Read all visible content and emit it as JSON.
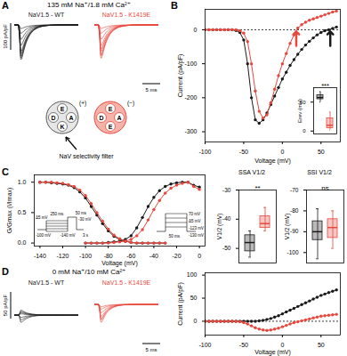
{
  "panel_labels": [
    "A",
    "B",
    "C",
    "D"
  ],
  "panel_a": {
    "condition": "135 mM Na⁺/1.8 mM Ca²⁺",
    "traces": [
      {
        "name": "NaV1.5 - WT",
        "color": "#1a1a1a"
      },
      {
        "name": "NaV1.5 - K1419E",
        "color": "#e8473d"
      }
    ],
    "scale_current": "100 pA/pF",
    "scale_time": "5 ms",
    "filter": {
      "caption": "NaV selectivity filter",
      "wt": {
        "residues": [
          "E",
          "A",
          "K",
          "D"
        ],
        "charge": "(+)"
      },
      "mutant": {
        "residues": [
          "E",
          "A",
          "E",
          "D"
        ],
        "charge": "(−)"
      }
    }
  },
  "panel_d": {
    "condition": "0 mM Na⁺/10 mM Ca²⁺",
    "traces": [
      {
        "name": "NaV1.5 - WT",
        "color": "#1a1a1a"
      },
      {
        "name": "NaV1.5 - K1419E",
        "color": "#e8473d"
      }
    ],
    "scale_current": "50 pA/pF",
    "scale_time": "5 ms"
  },
  "protocols": {
    "left": [
      "250 ms",
      "50 ms",
      "-30 mV",
      "Δ5 mV",
      "-100 mV",
      "-140 mV",
      "3 s"
    ],
    "right": [
      "50 ms",
      "70 mV",
      "Δ5 mV",
      "-123 mV",
      "-130 mV"
    ]
  },
  "chart_data": [
    {
      "type": "line",
      "x_label": "Voltage (mV)",
      "y_label": "Current (pA/pF)",
      "x": [
        -100,
        -95,
        -90,
        -85,
        -80,
        -75,
        -70,
        -65,
        -60,
        -55,
        -50,
        -45,
        -40,
        -35,
        -30,
        -25,
        -20,
        -15,
        -10,
        -5,
        0,
        5,
        10,
        15,
        20,
        25,
        30,
        35,
        40,
        45,
        50,
        55,
        60,
        65,
        70
      ],
      "series": [
        {
          "color": "#1a1a1a",
          "marker": "circle",
          "values": [
            0,
            0,
            0,
            0,
            0,
            0,
            0,
            0,
            -2,
            -8,
            -30,
            -100,
            -200,
            -265,
            -275,
            -265,
            -245,
            -220,
            -195,
            -170,
            -145,
            -125,
            -105,
            -88,
            -72,
            -58,
            -45,
            -34,
            -24,
            -15,
            -8,
            -3,
            0,
            4,
            8
          ]
        },
        {
          "color": "#e8473d",
          "marker": "circle",
          "values": [
            0,
            0,
            0,
            0,
            0,
            0,
            0,
            0,
            0,
            -3,
            -10,
            -35,
            -100,
            -180,
            -240,
            -260,
            -250,
            -215,
            -175,
            -135,
            -100,
            -70,
            -40,
            -15,
            5,
            15,
            22,
            28,
            32,
            36,
            40,
            44,
            48,
            52,
            55
          ]
        }
      ],
      "xlim": [
        -100,
        75
      ],
      "xticks": [
        -100,
        -50,
        0,
        50
      ],
      "ylim": [
        -330,
        60
      ],
      "yticks": [
        -300,
        -200,
        -100,
        0
      ],
      "reference_line": 0,
      "reversal_arrows": [
        {
          "x": 62,
          "color": "#1a1a1a"
        },
        {
          "x": 18,
          "color": "#e8473d"
        }
      ]
    },
    {
      "type": "box",
      "y_label": "Erev (mV)",
      "ylim": [
        -5,
        75
      ],
      "yticks": [
        0,
        50
      ],
      "tick_labels": "y",
      "significance": "***",
      "series": [
        {
          "color": "#1a1a1a",
          "min": 50,
          "q1": 55,
          "median": 58,
          "q3": 62,
          "max": 68
        },
        {
          "color": "#e8473d",
          "min": 2,
          "q1": 5,
          "median": 10,
          "q3": 22,
          "max": 33
        }
      ]
    },
    {
      "type": "line",
      "x_label": "Voltage (mV)",
      "y_label": "G/Gmax (I/Imax)",
      "xlim": [
        -145,
        5
      ],
      "xticks": [
        -140,
        -120,
        -100,
        -80,
        -60,
        -40,
        -20,
        0
      ],
      "ylim": [
        -0.05,
        1.12
      ],
      "yticks": [
        {
          "value": 0,
          "label": "0.0"
        },
        {
          "value": 0.5,
          "label": "0.5"
        },
        {
          "value": 1,
          "label": "1.0"
        }
      ],
      "series": [
        {
          "color": "#1a1a1a",
          "marker": "circle",
          "x": [
            -100,
            -95,
            -90,
            -85,
            -80,
            -75,
            -70,
            -65,
            -60,
            -55,
            -50,
            -45,
            -40,
            -35,
            -30,
            -25,
            -20,
            -15,
            -10,
            -5,
            0
          ],
          "values": [
            0,
            0,
            0,
            0,
            0.01,
            0.02,
            0.03,
            0.06,
            0.12,
            0.25,
            0.42,
            0.6,
            0.75,
            0.86,
            0.93,
            0.97,
            0.99,
            1.0,
            1.0,
            0.95,
            0.92
          ]
        },
        {
          "color": "#e8473d",
          "marker": "circle",
          "x": [
            -100,
            -95,
            -90,
            -85,
            -80,
            -75,
            -70,
            -65,
            -60,
            -55,
            -50,
            -45,
            -40,
            -35,
            -30,
            -25,
            -20,
            -15,
            -10,
            -5,
            0
          ],
          "values": [
            0,
            0,
            0,
            0,
            0,
            0.01,
            0.02,
            0.03,
            0.06,
            0.12,
            0.22,
            0.38,
            0.55,
            0.7,
            0.82,
            0.9,
            0.95,
            0.98,
            1.0,
            0.93,
            0.88
          ]
        },
        {
          "color": "#1a1a1a",
          "marker": "circle",
          "x": [
            -140,
            -135,
            -130,
            -125,
            -120,
            -115,
            -110,
            -105,
            -100,
            -95,
            -90,
            -85,
            -80,
            -75,
            -70,
            -65,
            -60,
            -55,
            -50,
            -45,
            -40,
            -35,
            -30
          ],
          "values": [
            1.0,
            1.0,
            0.99,
            0.98,
            0.97,
            0.95,
            0.91,
            0.84,
            0.74,
            0.6,
            0.46,
            0.32,
            0.2,
            0.11,
            0.06,
            0.03,
            0.01,
            0,
            0,
            0,
            0,
            0,
            0
          ]
        },
        {
          "color": "#e8473d",
          "marker": "circle",
          "x": [
            -140,
            -135,
            -130,
            -125,
            -120,
            -115,
            -110,
            -105,
            -100,
            -95,
            -90,
            -85,
            -80,
            -75,
            -70,
            -65,
            -60,
            -55,
            -50,
            -45,
            -40,
            -35,
            -30
          ],
          "values": [
            1.0,
            1.0,
            1.0,
            0.99,
            0.98,
            0.96,
            0.93,
            0.87,
            0.78,
            0.65,
            0.5,
            0.36,
            0.23,
            0.13,
            0.07,
            0.03,
            0.01,
            0,
            0,
            0,
            0,
            0,
            0
          ]
        }
      ]
    },
    {
      "type": "box",
      "title": "SSA V1/2",
      "y_label": "V1/2 (mV)",
      "ylim": [
        -55,
        -30
      ],
      "yticks": [
        -50,
        -40,
        -30
      ],
      "tick_labels": "y",
      "significance": "**",
      "series": [
        {
          "color": "#1a1a1a",
          "min": -53,
          "q1": -51,
          "median": -48,
          "q3": -45.5,
          "max": -44
        },
        {
          "color": "#e8473d",
          "min": -44,
          "q1": -43,
          "median": -41.5,
          "q3": -39,
          "max": -36
        }
      ]
    },
    {
      "type": "box",
      "title": "SSI V1/2",
      "y_label": "V1/2 (mV)",
      "ylim": [
        -105,
        -70
      ],
      "yticks": [
        -100,
        -90,
        -80,
        -70
      ],
      "tick_labels": "y",
      "significance": "ns",
      "series": [
        {
          "color": "#1a1a1a",
          "min": -103,
          "q1": -94,
          "median": -90,
          "q3": -85,
          "max": -79
        },
        {
          "color": "#e8473d",
          "min": -98,
          "q1": -93,
          "median": -88,
          "q3": -84,
          "max": -80
        }
      ]
    },
    {
      "type": "line",
      "x_label": "Voltage (mV)",
      "y_label": "Current (pA/pF)",
      "x": [
        -100,
        -95,
        -90,
        -85,
        -80,
        -75,
        -70,
        -65,
        -60,
        -55,
        -50,
        -45,
        -40,
        -35,
        -30,
        -25,
        -20,
        -15,
        -10,
        -5,
        0,
        5,
        10,
        15,
        20,
        25,
        30,
        35,
        40,
        45,
        50,
        55,
        60,
        65,
        70
      ],
      "series": [
        {
          "color": "#1a1a1a",
          "marker": "circle",
          "values": [
            0,
            0,
            0,
            0,
            0,
            0,
            0,
            0,
            0,
            0,
            0,
            0,
            0,
            0,
            1,
            2,
            4,
            6,
            9,
            12,
            16,
            20,
            24,
            28,
            32,
            36,
            40,
            44,
            48,
            52,
            56,
            59,
            62,
            65,
            68
          ]
        },
        {
          "color": "#e8473d",
          "marker": "circle",
          "values": [
            0,
            0,
            0,
            0,
            0,
            0,
            0,
            0,
            0,
            -1,
            -3,
            -6,
            -10,
            -14,
            -17,
            -19,
            -20,
            -19,
            -17,
            -15,
            -12,
            -9,
            -6,
            -3,
            -1,
            1,
            3,
            5,
            7,
            9,
            11,
            12,
            13,
            14,
            15
          ]
        }
      ],
      "xlim": [
        -100,
        75
      ],
      "xticks": [
        -100,
        -50,
        0,
        50
      ],
      "ylim": [
        -30,
        105
      ],
      "yticks": [
        0,
        50,
        100
      ],
      "reference_line": 0
    }
  ]
}
